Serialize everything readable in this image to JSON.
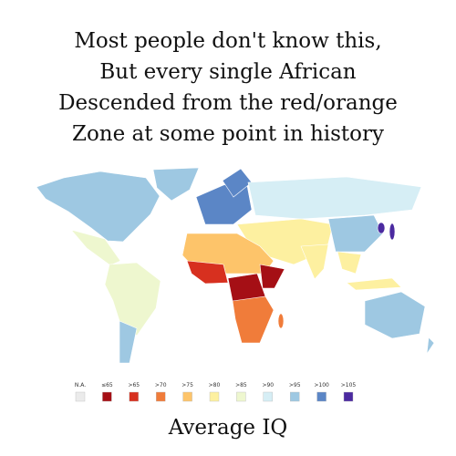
{
  "header": {
    "lines": [
      "Most people don't know this,",
      "But every single African",
      "Descended from the red/orange",
      "Zone at some point in history"
    ]
  },
  "legend": {
    "items": [
      {
        "label": "N.A.",
        "color": "#ebebeb"
      },
      {
        "label": "≤65",
        "color": "#a50f15"
      },
      {
        "label": ">65",
        "color": "#d7301f"
      },
      {
        "label": ">70",
        "color": "#f07c3a"
      },
      {
        "label": ">75",
        "color": "#fdc46a"
      },
      {
        "label": ">80",
        "color": "#fdf0a0"
      },
      {
        "label": ">85",
        "color": "#eef7cf"
      },
      {
        "label": ">90",
        "color": "#d6eef5"
      },
      {
        "label": ">95",
        "color": "#9ec8e2"
      },
      {
        "label": ">100",
        "color": "#5b86c6"
      },
      {
        "label": ">105",
        "color": "#4b2aa0"
      }
    ]
  },
  "caption": "Average IQ"
}
